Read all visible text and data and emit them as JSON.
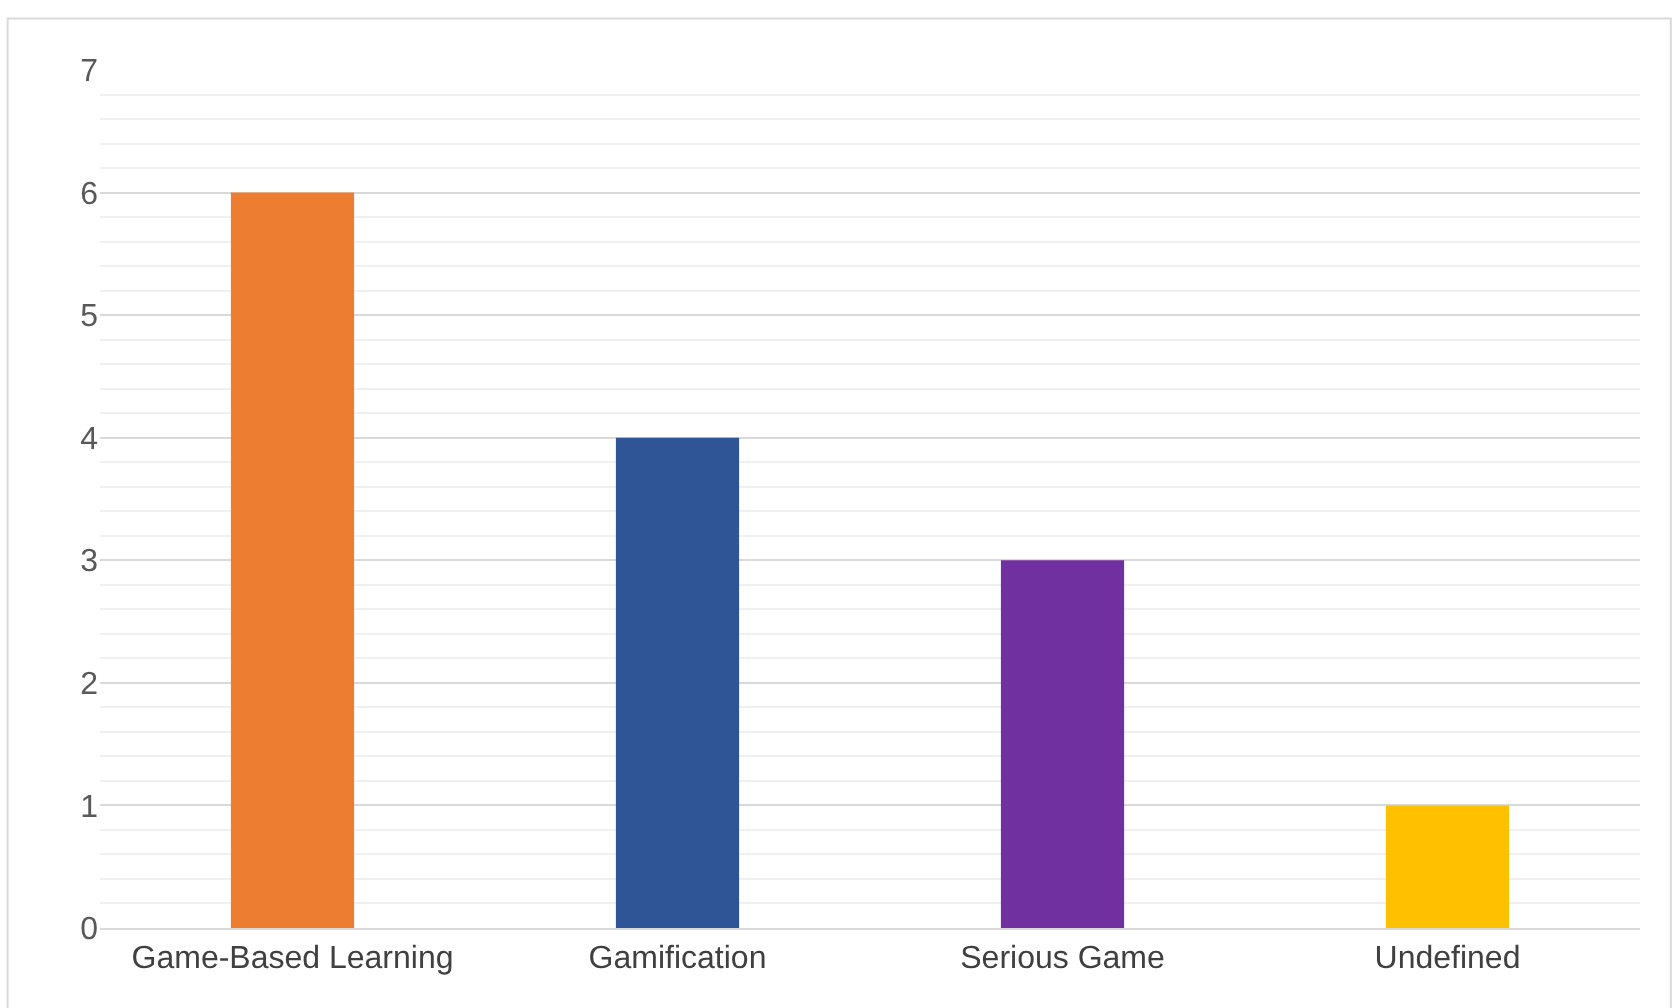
{
  "chart_data": {
    "type": "bar",
    "categories": [
      "Game-Based Learning",
      "Gamification",
      "Serious Game",
      "Undefined"
    ],
    "values": [
      6,
      4,
      3,
      1
    ],
    "colors": [
      "#ed7d31",
      "#2f5597",
      "#7030a0",
      "#ffc000"
    ],
    "ylim": [
      0,
      7
    ],
    "yticks": [
      0,
      1,
      2,
      3,
      4,
      5,
      6,
      7
    ],
    "grid": "y"
  }
}
